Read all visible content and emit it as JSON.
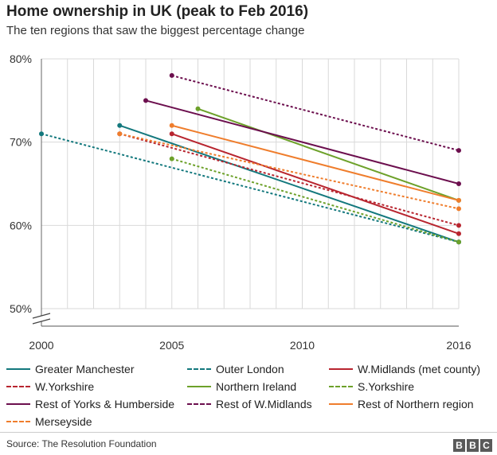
{
  "title": "Home ownership in UK (peak to Feb 2016)",
  "subtitle": "The ten regions that saw the biggest percentage change",
  "source": "Source: The Resolution Foundation",
  "logo": [
    "B",
    "B",
    "C"
  ],
  "chart_data": {
    "type": "line",
    "title": "Home ownership in UK (peak to Feb 2016)",
    "xlabel": "",
    "ylabel": "",
    "xlim": [
      2000,
      2016
    ],
    "ylim": [
      50,
      80
    ],
    "x_ticks": [
      2000,
      2005,
      2010,
      2016
    ],
    "y_ticks": [
      50,
      60,
      70,
      80
    ],
    "y_tick_labels": [
      "50%",
      "60%",
      "70%",
      "80%"
    ],
    "grid": true,
    "axis_break": true,
    "legend_position": "bottom",
    "series": [
      {
        "name": "Greater Manchester",
        "color": "#13787d",
        "style": "solid",
        "points": [
          [
            2003,
            72
          ],
          [
            2016,
            58
          ]
        ]
      },
      {
        "name": "Outer London",
        "color": "#13787d",
        "style": "dashed",
        "points": [
          [
            2000,
            71
          ],
          [
            2016,
            58
          ]
        ]
      },
      {
        "name": "W.Midlands (met county)",
        "color": "#b8252f",
        "style": "solid",
        "points": [
          [
            2005,
            71
          ],
          [
            2016,
            59
          ]
        ]
      },
      {
        "name": "W.Yorkshire",
        "color": "#b8252f",
        "style": "dashed",
        "points": [
          [
            2003,
            71
          ],
          [
            2016,
            60
          ]
        ]
      },
      {
        "name": "Northern Ireland",
        "color": "#6da12a",
        "style": "solid",
        "points": [
          [
            2006,
            74
          ],
          [
            2016,
            63
          ]
        ]
      },
      {
        "name": "S.Yorkshire",
        "color": "#6da12a",
        "style": "dashed",
        "points": [
          [
            2005,
            68
          ],
          [
            2016,
            58
          ]
        ]
      },
      {
        "name": "Rest of Yorks & Humberside",
        "color": "#6c0f4e",
        "style": "solid",
        "points": [
          [
            2004,
            75
          ],
          [
            2016,
            65
          ]
        ]
      },
      {
        "name": "Rest of W.Midlands",
        "color": "#6c0f4e",
        "style": "dashed",
        "points": [
          [
            2005,
            78
          ],
          [
            2016,
            69
          ]
        ]
      },
      {
        "name": "Rest of Northern region",
        "color": "#ef7d2c",
        "style": "solid",
        "points": [
          [
            2005,
            72
          ],
          [
            2016,
            63
          ]
        ]
      },
      {
        "name": "Merseyside",
        "color": "#ef7d2c",
        "style": "dashed",
        "points": [
          [
            2003,
            71
          ],
          [
            2016,
            62
          ]
        ]
      }
    ]
  }
}
